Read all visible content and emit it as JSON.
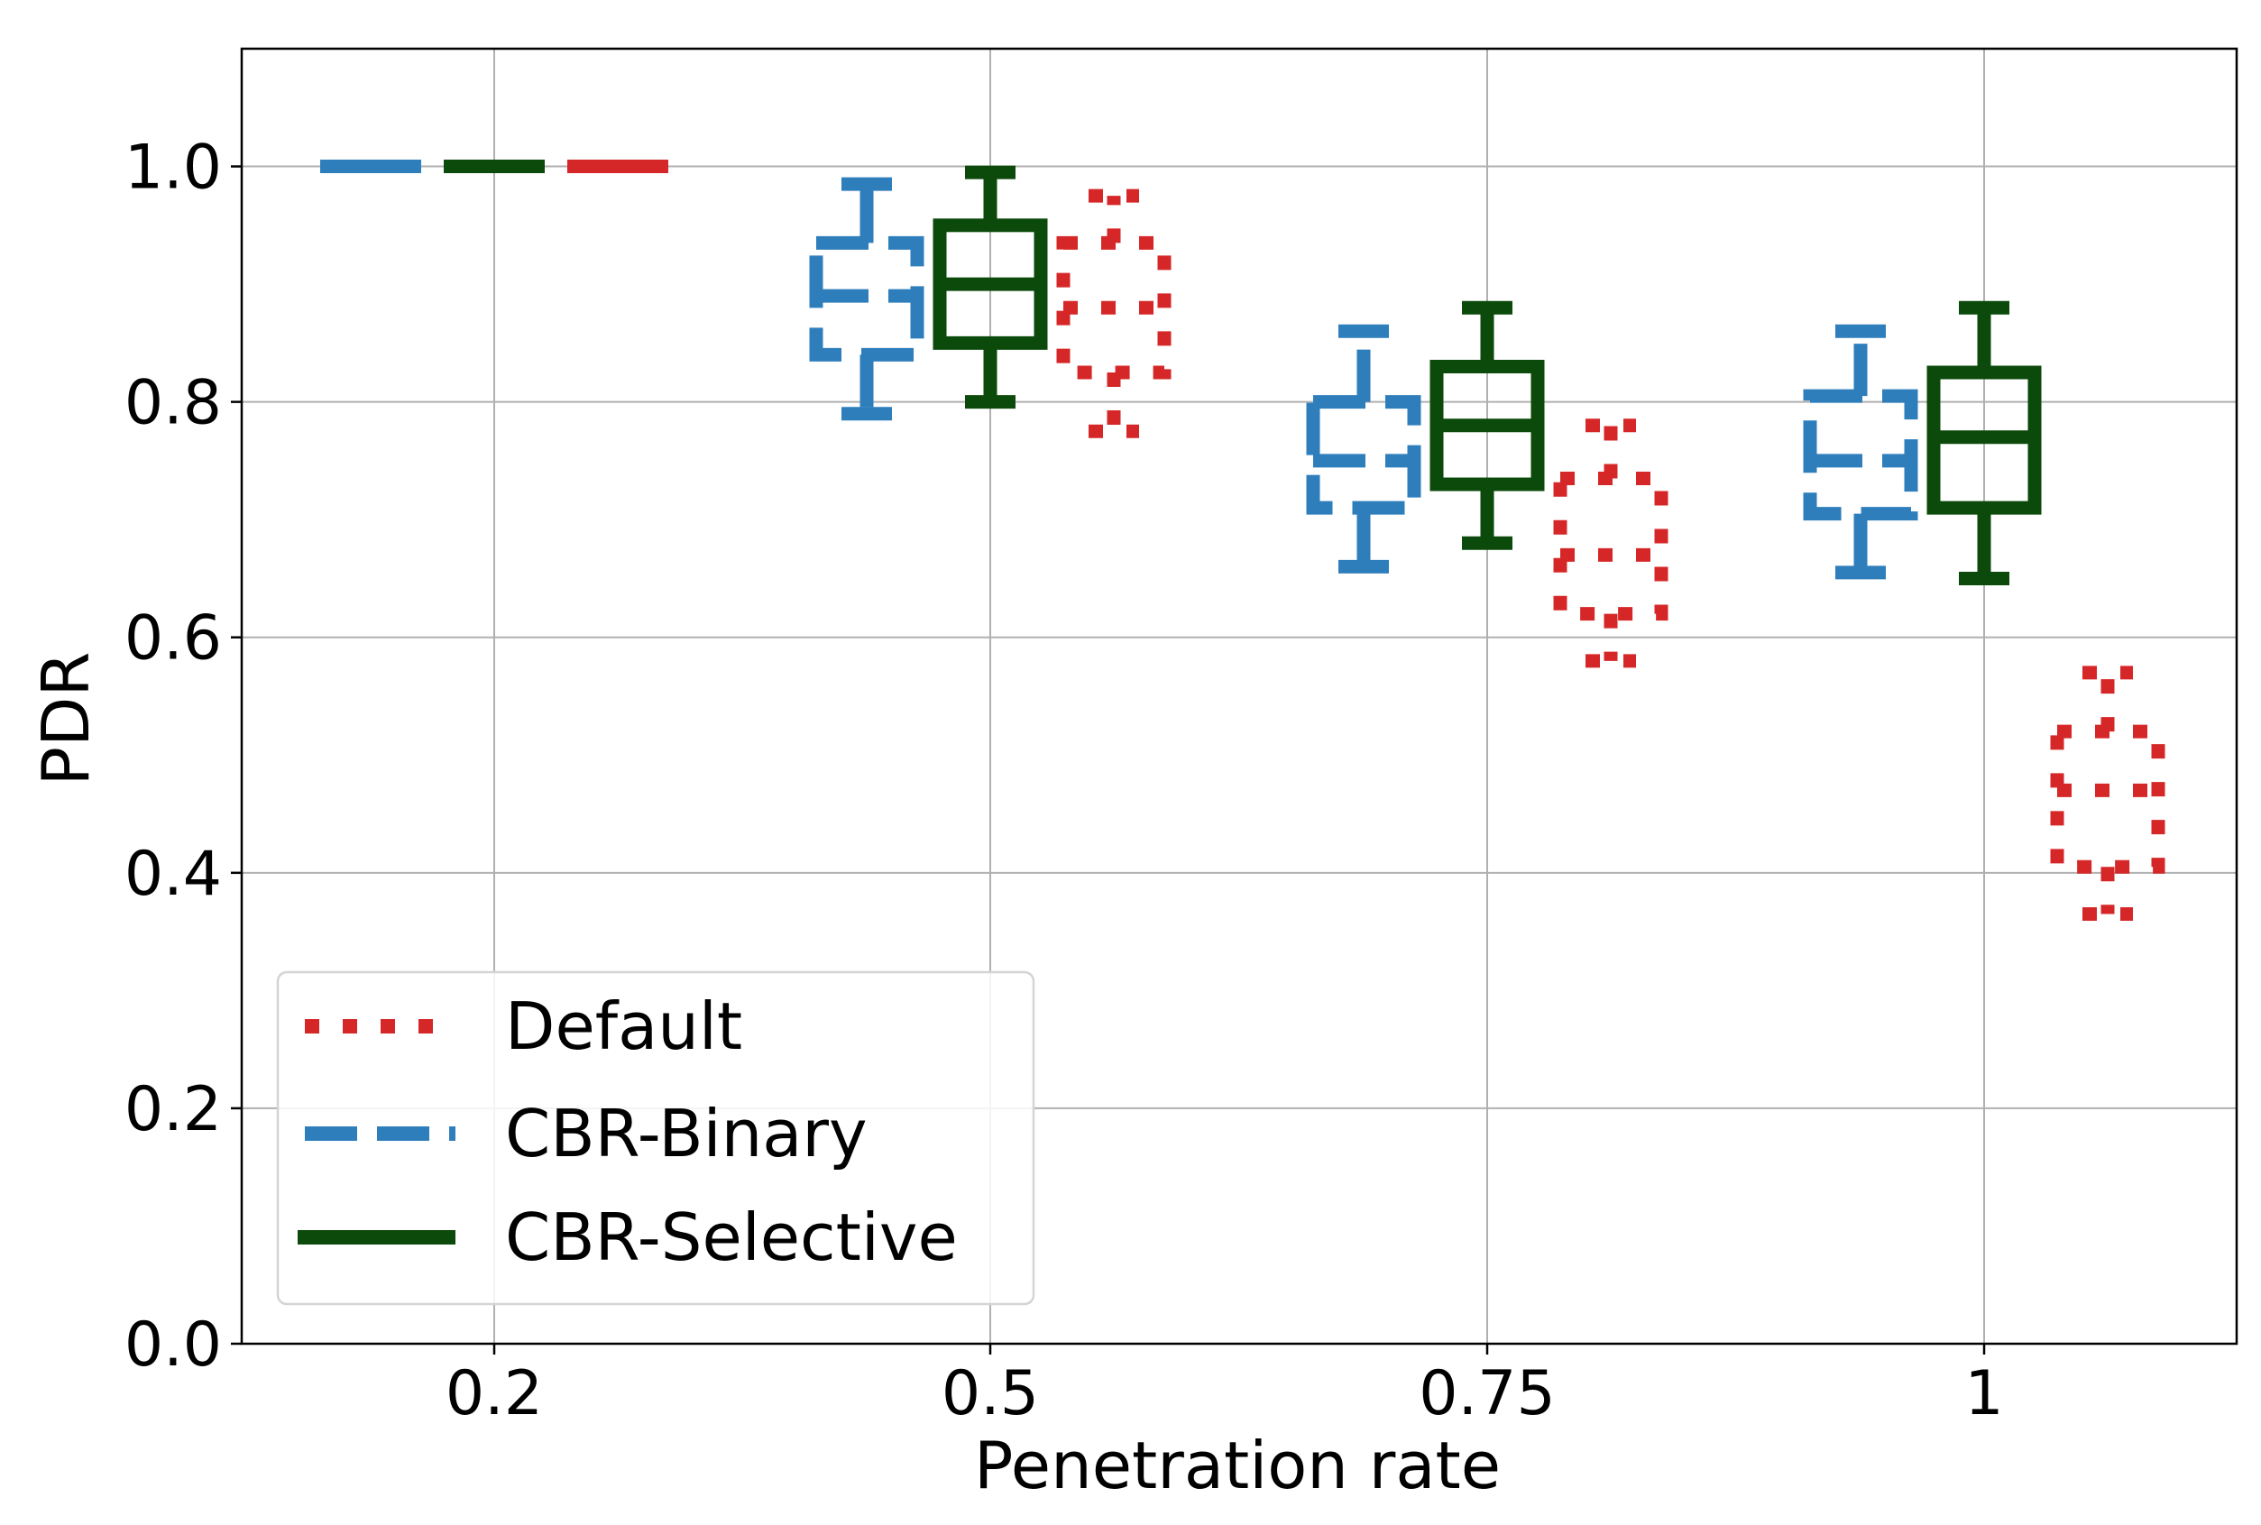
{
  "chart_data": {
    "type": "box",
    "title": "",
    "xlabel": "Penetration rate",
    "ylabel": "PDR",
    "categories": [
      "0.2",
      "0.5",
      "0.75",
      "1"
    ],
    "ylim": [
      0,
      1.1
    ],
    "yticks": [
      0.0,
      0.2,
      0.4,
      0.6,
      0.8,
      1.0
    ],
    "ytick_labels": [
      "0.0",
      "0.2",
      "0.4",
      "0.6",
      "0.8",
      "1.0"
    ],
    "grid": true,
    "legend_position": "lower-left",
    "series": [
      {
        "name": "Default",
        "color": "#d62728",
        "linestyle": "dotted",
        "boxes": [
          {
            "whisker_low": 1.0,
            "q1": 1.0,
            "median": 1.0,
            "q3": 1.0,
            "whisker_high": 1.0
          },
          {
            "whisker_low": 0.775,
            "q1": 0.825,
            "median": 0.88,
            "q3": 0.935,
            "whisker_high": 0.975
          },
          {
            "whisker_low": 0.58,
            "q1": 0.62,
            "median": 0.67,
            "q3": 0.735,
            "whisker_high": 0.78
          },
          {
            "whisker_low": 0.365,
            "q1": 0.405,
            "median": 0.47,
            "q3": 0.52,
            "whisker_high": 0.57
          }
        ]
      },
      {
        "name": "CBR-Binary",
        "color": "#2f7ebc",
        "linestyle": "dashed",
        "boxes": [
          {
            "whisker_low": 1.0,
            "q1": 1.0,
            "median": 1.0,
            "q3": 1.0,
            "whisker_high": 1.0
          },
          {
            "whisker_low": 0.79,
            "q1": 0.84,
            "median": 0.89,
            "q3": 0.935,
            "whisker_high": 0.985
          },
          {
            "whisker_low": 0.66,
            "q1": 0.71,
            "median": 0.75,
            "q3": 0.8,
            "whisker_high": 0.86
          },
          {
            "whisker_low": 0.655,
            "q1": 0.705,
            "median": 0.75,
            "q3": 0.805,
            "whisker_high": 0.86
          }
        ]
      },
      {
        "name": "CBR-Selective",
        "color": "#0b4a0b",
        "linestyle": "solid",
        "boxes": [
          {
            "whisker_low": 1.0,
            "q1": 1.0,
            "median": 1.0,
            "q3": 1.0,
            "whisker_high": 1.0
          },
          {
            "whisker_low": 0.8,
            "q1": 0.85,
            "median": 0.9,
            "q3": 0.95,
            "whisker_high": 0.995
          },
          {
            "whisker_low": 0.68,
            "q1": 0.73,
            "median": 0.78,
            "q3": 0.83,
            "whisker_high": 0.88
          },
          {
            "whisker_low": 0.65,
            "q1": 0.71,
            "median": 0.77,
            "q3": 0.825,
            "whisker_high": 0.88
          }
        ]
      }
    ]
  }
}
